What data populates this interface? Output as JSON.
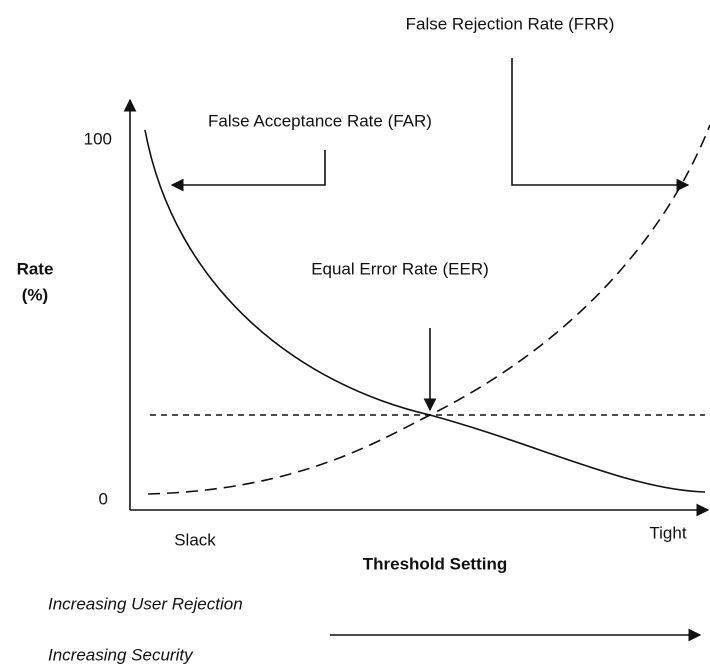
{
  "annotations": {
    "frr": "False Rejection Rate (FRR)",
    "far": "False Acceptance Rate (FAR)",
    "eer": "Equal Error Rate (EER)"
  },
  "y_axis": {
    "label_line1": "Rate",
    "label_line2": "(%)",
    "top": "100",
    "bottom": "0"
  },
  "x_axis": {
    "title": "Threshold Setting",
    "left": "Slack",
    "right": "Tight"
  },
  "footer": {
    "line1": "Increasing User Rejection",
    "line2": "Increasing Security"
  }
}
